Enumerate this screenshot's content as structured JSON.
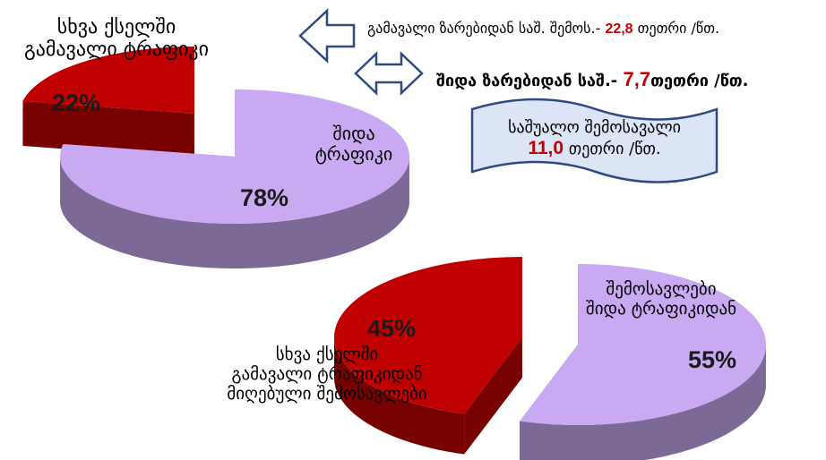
{
  "chart_data": [
    {
      "type": "pie",
      "categories": [
        "სხვა ქსელში\nგამავალი ტრაფიკი",
        "შიდა\nტრაფიკი"
      ],
      "values": [
        22,
        78
      ],
      "value_labels": [
        "22%",
        "78%"
      ],
      "colors": [
        "#c00000",
        "#c9a9f2"
      ]
    },
    {
      "type": "pie",
      "categories": [
        "სხვა ქსელში\nგამავალი ტრაფიკიდან\nმიღებული შემოსავლები",
        "შემოსავლები\nშიდა ტრაფიკიდან"
      ],
      "values": [
        45,
        55
      ],
      "value_labels": [
        "45%",
        "55%"
      ],
      "colors": [
        "#c00000",
        "#c9a9f2"
      ]
    }
  ],
  "annotations": [
    {
      "text": "გამავალი  ზარებიდან საშ. შემოს.-",
      "value": "22,8",
      "unit": "თეთრი /წთ."
    },
    {
      "text": "შიდა ზარებიდან საშ.-",
      "value": "7,7",
      "unit": "თეთრი /წთ."
    }
  ],
  "banner": {
    "text": "საშუალო შემოსავალი",
    "value": "11,0",
    "unit": "თეთრი /წთ."
  }
}
